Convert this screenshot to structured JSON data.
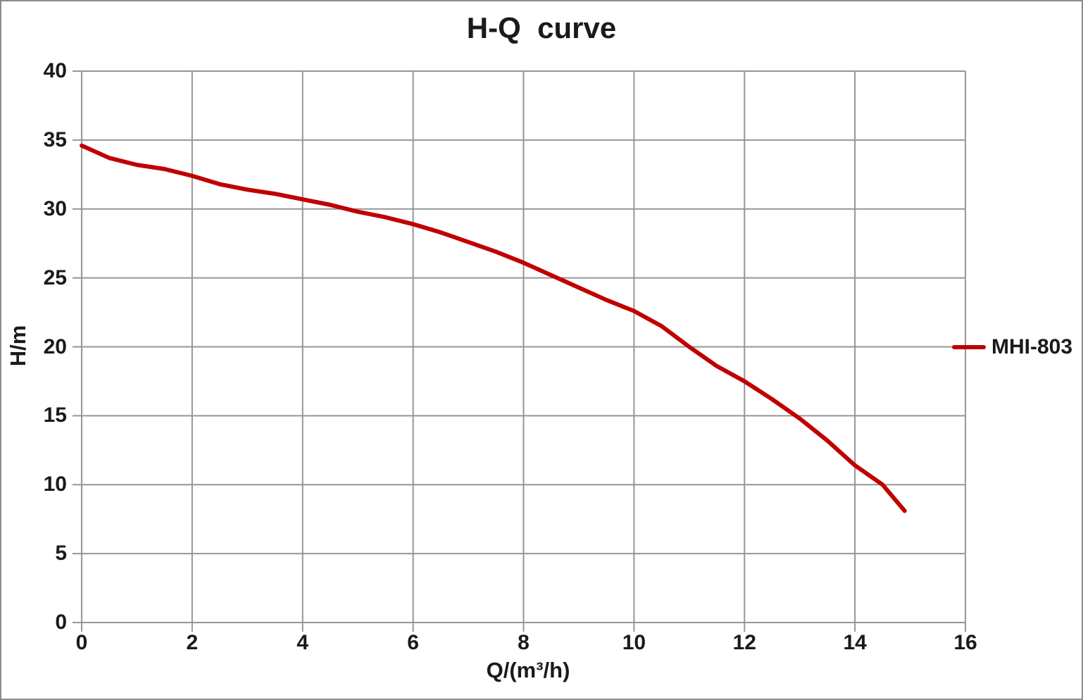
{
  "title": "H-Q  curve",
  "colors": {
    "curve": "#c00000",
    "grid": "#969696",
    "text": "#1a1a1a",
    "frame_border": "#8c8c8c",
    "background": "#ffffff"
  },
  "legend": {
    "label": "MHI-803"
  },
  "chart_data": {
    "type": "line",
    "title": "H-Q  curve",
    "xlabel": "Q/(m³/h)",
    "ylabel": "H/m",
    "xlim": [
      0,
      16
    ],
    "ylim": [
      0,
      40
    ],
    "x_ticks": [
      0,
      2,
      4,
      6,
      8,
      10,
      12,
      14,
      16
    ],
    "y_ticks": [
      0,
      5,
      10,
      15,
      20,
      25,
      30,
      35,
      40
    ],
    "grid": true,
    "legend_position": "right",
    "series": [
      {
        "name": "MHI-803",
        "color": "#c00000",
        "x": [
          0,
          0.5,
          1,
          1.5,
          2,
          2.5,
          3,
          3.5,
          4,
          4.5,
          5,
          5.5,
          6,
          6.5,
          7,
          7.5,
          8,
          8.5,
          9,
          9.5,
          10,
          10.5,
          11,
          11.5,
          12,
          12.5,
          13,
          13.5,
          14,
          14.5,
          14.9
        ],
        "y": [
          34.6,
          33.7,
          33.2,
          32.9,
          32.4,
          31.8,
          31.4,
          31.1,
          30.7,
          30.3,
          29.8,
          29.4,
          28.9,
          28.3,
          27.6,
          26.9,
          26.1,
          25.2,
          24.3,
          23.4,
          22.6,
          21.5,
          20.0,
          18.6,
          17.5,
          16.2,
          14.8,
          13.2,
          11.4,
          10.0,
          8.1
        ]
      }
    ]
  }
}
